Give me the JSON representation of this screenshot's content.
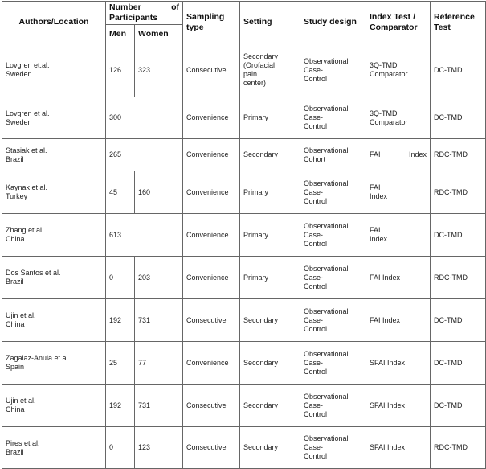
{
  "headers": {
    "authors": "Authors/Location",
    "participants_1": "Number",
    "participants_2": "of",
    "participants_3": "Participants",
    "men": "Men",
    "women": "Women",
    "sampling": "Sampling type",
    "setting": "Setting",
    "design": "Study design",
    "index": "Index Test / Comparator",
    "reference": "Reference Test"
  },
  "rows": [
    {
      "author": "Lovgren et.al.\nSweden",
      "men": "126",
      "women": "323",
      "sampling": "Consecutive",
      "setting": "Secondary\n(Orofacial\npain\ncenter)",
      "design": "Observational\nCase-\nControl",
      "index": " 3Q-TMD\nComparator",
      "reference": "DC-TMD"
    },
    {
      "author": "Lovgren et al.\nSweden",
      "total": "300",
      "sampling": "Convenience",
      "setting": "Primary",
      "design": "Observational\nCase-\nControl",
      "index": "3Q-TMD\nComparator",
      "reference": "DC-TMD"
    },
    {
      "author": "Stasiak et al.\nBrazil",
      "total": "265",
      "sampling": "Convenience",
      "setting": "Secondary",
      "design": "Observational\nCohort",
      "index_a": "FAI",
      "index_b": "Index",
      "reference": "RDC-TMD"
    },
    {
      "author": "Kaynak et al.\nTurkey",
      "men": "45",
      "women": "160",
      "sampling": "Convenience",
      "setting": "Primary",
      "design": "Observational\nCase-\nControl",
      "index": "    FAI\nIndex",
      "reference": "RDC-TMD"
    },
    {
      "author": "Zhang et al.\nChina",
      "total": "613",
      "sampling": "Convenience",
      "setting": "Primary",
      "design": "Observational\nCase-\nControl",
      "index": "    FAI\nIndex",
      "reference": "DC-TMD"
    },
    {
      "author": "Dos Santos et al.\nBrazil",
      "men": "0",
      "women": "203",
      "sampling": "Convenience",
      "setting": "Primary",
      "design": "Observational\nCase-\nControl",
      "index": "FAI Index",
      "reference": "RDC-TMD"
    },
    {
      "author": "Ujin et al.\nChina",
      "men": "192",
      "women": "731",
      "sampling": "Consecutive",
      "setting": "Secondary",
      "design": "Observational\nCase-\nControl",
      "index": "FAI Index",
      "reference": "DC-TMD"
    },
    {
      "author": "Zagalaz-Anula et al.\nSpain",
      "men": "25",
      "women": "77",
      "sampling": "Convenience",
      "setting": "Secondary",
      "design": "Observational\nCase-\nControl",
      "index": "SFAI Index",
      "reference": "DC-TMD"
    },
    {
      "author": "Ujin et al.\nChina",
      "men": "192",
      "women": "731",
      "sampling": "Consecutive",
      "setting": "Secondary",
      "design": "Observational\nCase-\nControl",
      "index": "SFAI Index",
      "reference": "DC-TMD"
    },
    {
      "author": "Pires et al.\n Brazil",
      "men": "0",
      "women": "123",
      "sampling": "Consecutive",
      "setting": "Secondary",
      "design": "Observational\nCase-\nControl",
      "index": "SFAI Index",
      "reference": "RDC-TMD"
    }
  ]
}
